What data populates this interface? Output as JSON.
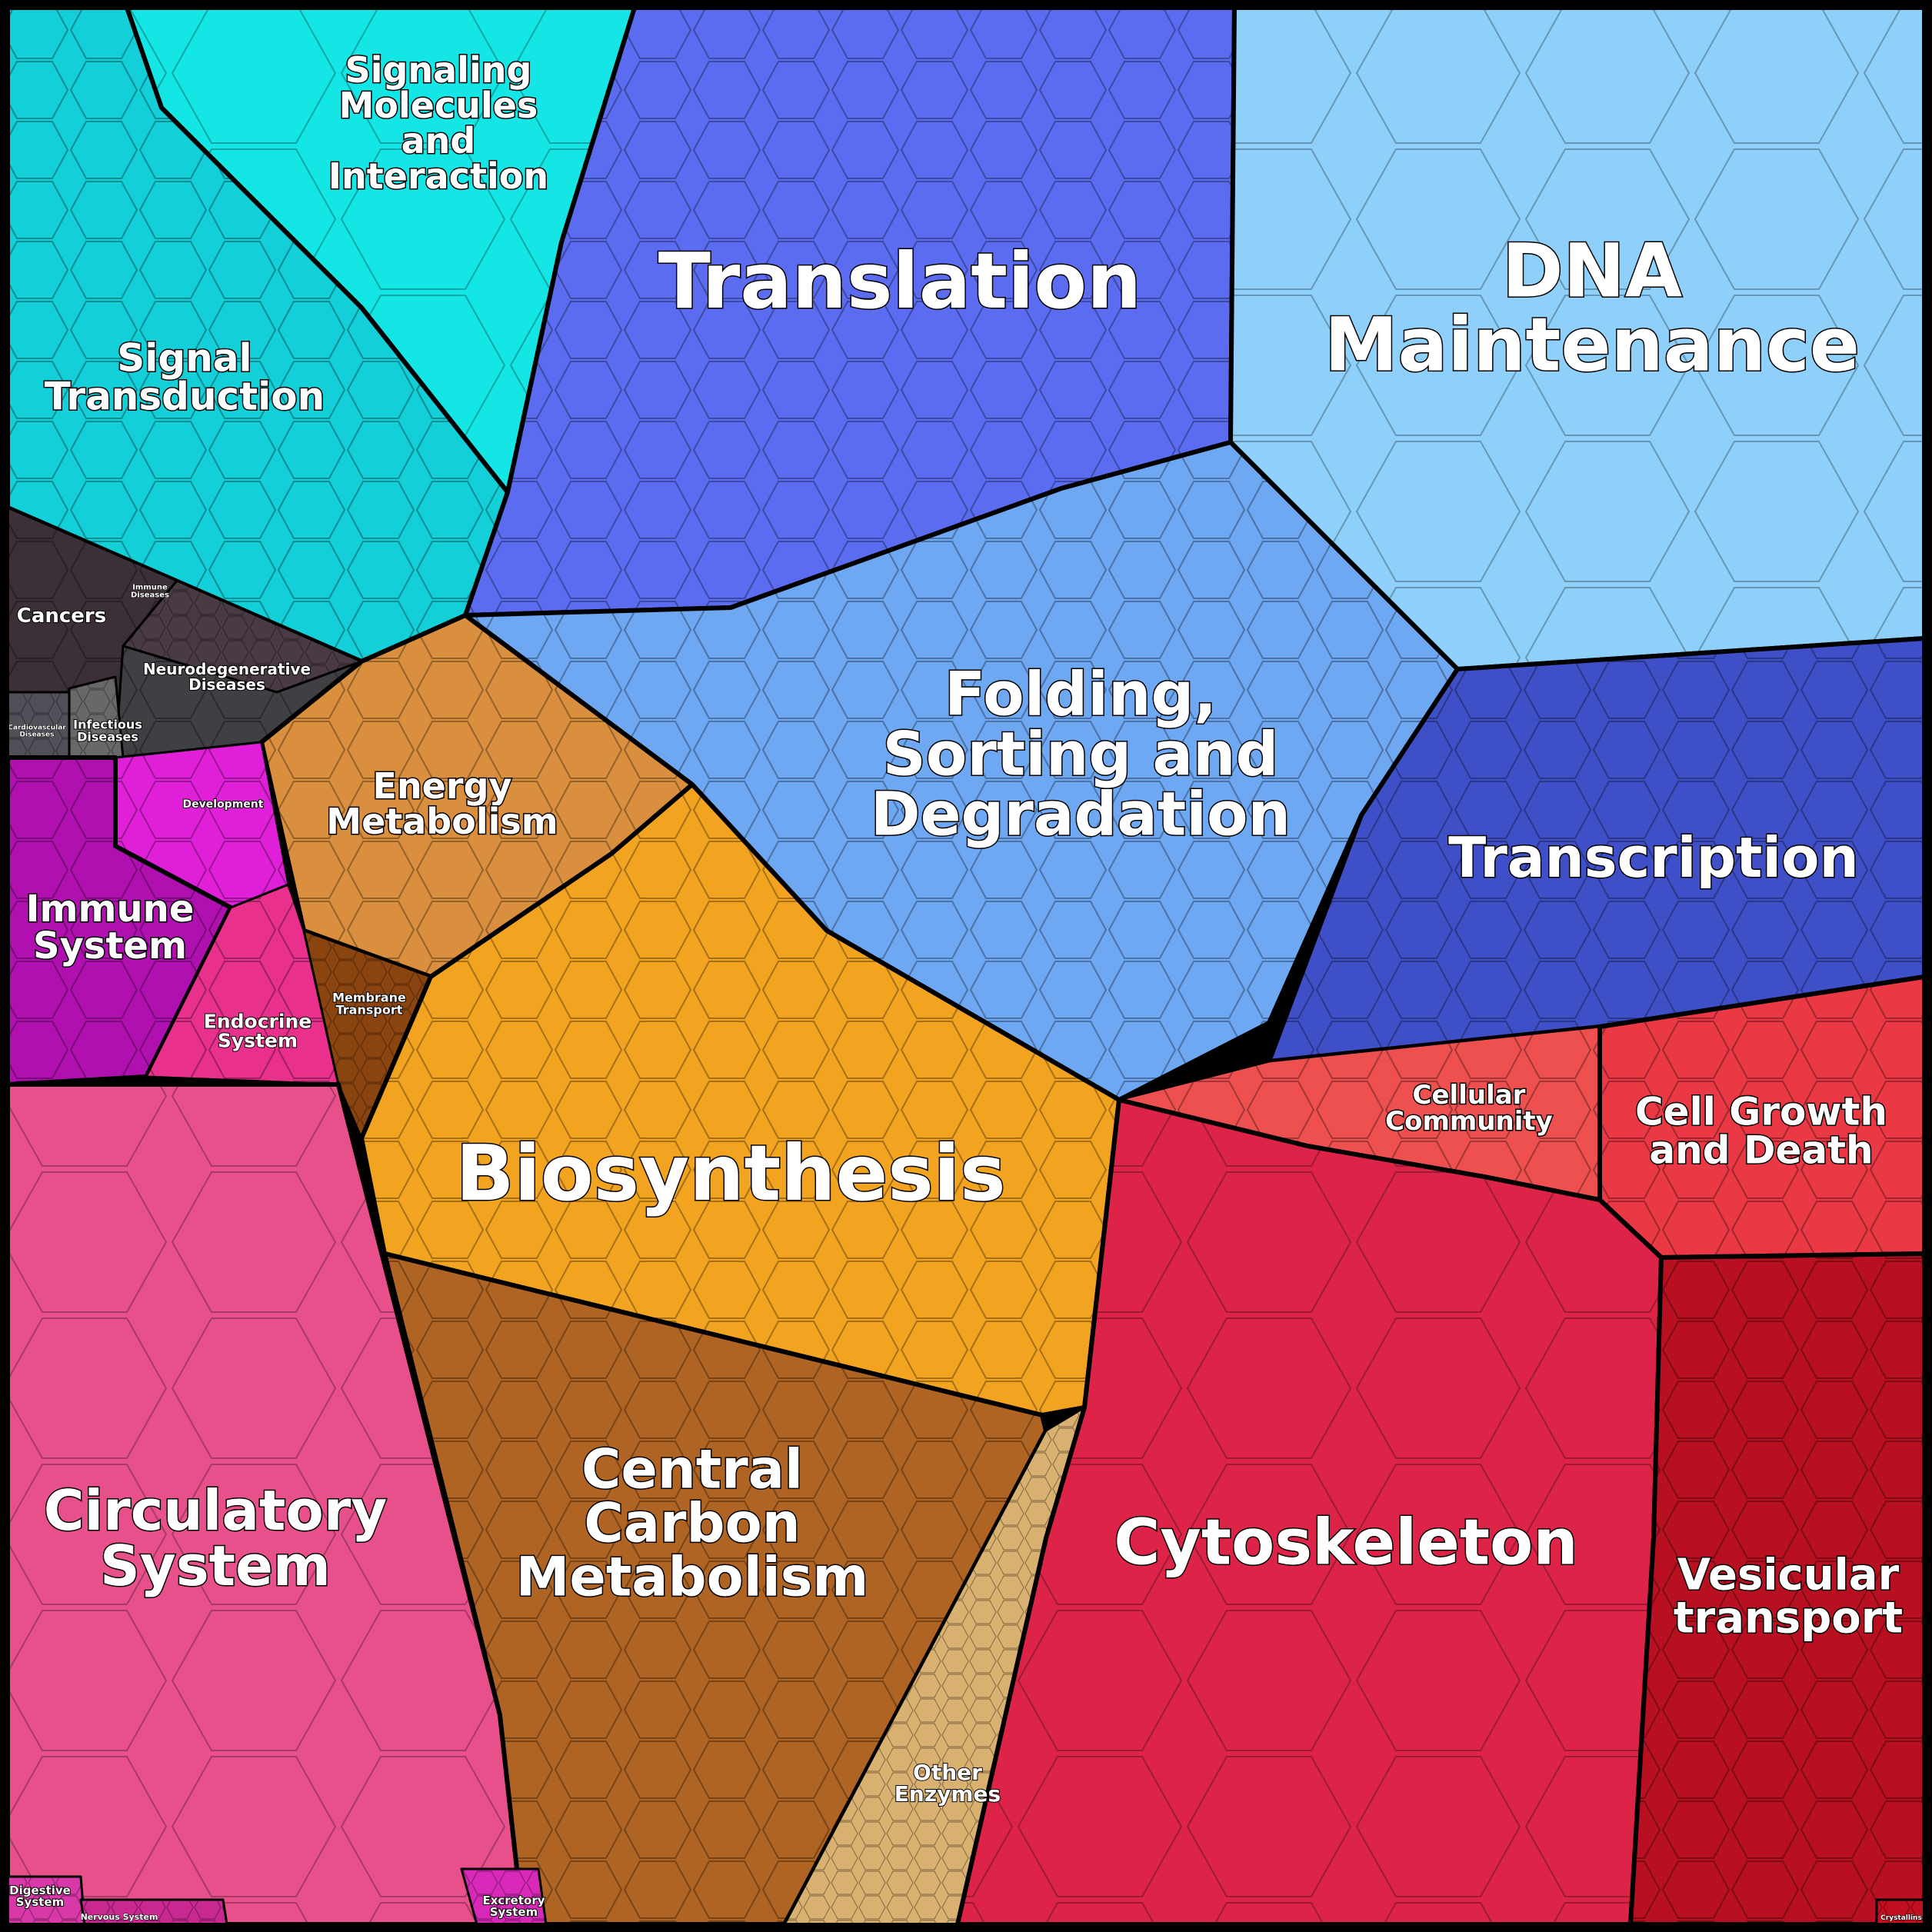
{
  "diagram": {
    "type": "voronoi-treemap",
    "border_color": "#000000",
    "categories": [
      {
        "id": "signaling",
        "lines": [
          "Signaling",
          "Molecules",
          "and",
          "Interaction"
        ],
        "color": "#14e6e6"
      },
      {
        "id": "signal-transduction",
        "lines": [
          "Signal",
          "Transduction"
        ],
        "color": "#12cfd8"
      },
      {
        "id": "translation",
        "lines": [
          "Translation"
        ],
        "color": "#5b6cf0"
      },
      {
        "id": "dna-maintenance",
        "lines": [
          "DNA",
          "Maintenance"
        ],
        "color": "#8fd0fa"
      },
      {
        "id": "cancers",
        "lines": [
          "Cancers"
        ],
        "color": "#3c3038"
      },
      {
        "id": "immune-diseases",
        "lines": [
          "Immune",
          "Diseases"
        ],
        "color": "#4a3a44"
      },
      {
        "id": "neurodegenerative",
        "lines": [
          "Neurodegenerative",
          "Diseases"
        ],
        "color": "#404044"
      },
      {
        "id": "cardiovascular",
        "lines": [
          "Cardiovascular",
          "Diseases"
        ],
        "color": "#505058"
      },
      {
        "id": "infectious",
        "lines": [
          "Infectious",
          "Diseases"
        ],
        "color": "#686868"
      },
      {
        "id": "folding",
        "lines": [
          "Folding,",
          "Sorting and",
          "Degradation"
        ],
        "color": "#6fa8f2"
      },
      {
        "id": "transcription",
        "lines": [
          "Transcription"
        ],
        "color": "#3f4fc8"
      },
      {
        "id": "energy-metabolism",
        "lines": [
          "Energy",
          "Metabolism"
        ],
        "color": "#d98f3e"
      },
      {
        "id": "development",
        "lines": [
          "Development"
        ],
        "color": "#e020d8"
      },
      {
        "id": "immune-system",
        "lines": [
          "Immune",
          "System"
        ],
        "color": "#b010b0"
      },
      {
        "id": "endocrine-system",
        "lines": [
          "Endocrine",
          "System"
        ],
        "color": "#e8308c"
      },
      {
        "id": "membrane-transport",
        "lines": [
          "Membrane",
          "Transport"
        ],
        "color": "#8a4410"
      },
      {
        "id": "biosynthesis",
        "lines": [
          "Biosynthesis"
        ],
        "color": "#f2a420"
      },
      {
        "id": "cellular-community",
        "lines": [
          "Cellular",
          "Community"
        ],
        "color": "#ee5050"
      },
      {
        "id": "cell-growth-death",
        "lines": [
          "Cell Growth",
          "and Death"
        ],
        "color": "#ea3844"
      },
      {
        "id": "circulatory-system",
        "lines": [
          "Circulatory",
          "System"
        ],
        "color": "#e8508c"
      },
      {
        "id": "central-carbon",
        "lines": [
          "Central",
          "Carbon",
          "Metabolism"
        ],
        "color": "#b06424"
      },
      {
        "id": "other-enzymes",
        "lines": [
          "Other",
          "Enzymes"
        ],
        "color": "#d8b070"
      },
      {
        "id": "cytoskeleton",
        "lines": [
          "Cytoskeleton"
        ],
        "color": "#dd2448"
      },
      {
        "id": "vesicular-transport",
        "lines": [
          "Vesicular",
          "transport"
        ],
        "color": "#b81020"
      },
      {
        "id": "digestive-system",
        "lines": [
          "Digestive",
          "System"
        ],
        "color": "#d838a8"
      },
      {
        "id": "nervous-system",
        "lines": [
          "Nervous System"
        ],
        "color": "#c82890"
      },
      {
        "id": "excretory-system",
        "lines": [
          "Excretory",
          "System"
        ],
        "color": "#d828b8"
      },
      {
        "id": "crystallins",
        "lines": [
          "Crystallins"
        ],
        "color": "#c01020"
      }
    ]
  }
}
